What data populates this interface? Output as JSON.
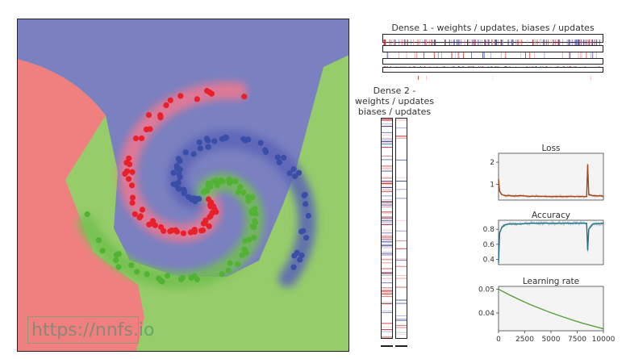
{
  "watermark": "https://nnfs.io",
  "dense1": {
    "title": "Dense 1 - weights / updates, biases / updates"
  },
  "dense2": {
    "title_line1": "Dense 2 -",
    "title_line2": "weights / updates",
    "title_line3": "biases / updates"
  },
  "colors": {
    "class0": "#e8202a",
    "class1": "#3a4ea8",
    "class2": "#52b234",
    "region0": "#f08080",
    "region1": "#7a80c0",
    "region2": "#96cc6a",
    "loss_line": "#a4461a",
    "acc_line": "#206e8a",
    "lr_line": "#5a9e3a",
    "panel_bg": "#f4f4f4"
  },
  "chart_data": [
    {
      "type": "scatter",
      "title": "",
      "description_of_series": "three interleaved spiral arms on a decision-region background",
      "series": [
        {
          "color": "red",
          "arms": 1
        },
        {
          "color": "blue",
          "arms": 1
        },
        {
          "color": "green",
          "arms": 1
        }
      ]
    },
    {
      "type": "line",
      "title": "Loss",
      "x": [
        0,
        100,
        300,
        600,
        1000,
        1500,
        2000,
        3000,
        4000,
        5000,
        6000,
        7000,
        8000,
        8400,
        8500,
        8600,
        9000,
        10000
      ],
      "values": [
        1.25,
        0.7,
        0.55,
        0.5,
        0.5,
        0.48,
        0.5,
        0.47,
        0.47,
        0.46,
        0.46,
        0.46,
        0.46,
        0.46,
        1.9,
        0.55,
        0.5,
        0.48
      ],
      "xlim": [
        0,
        10000
      ],
      "ylim": [
        0.3,
        2.4
      ],
      "yticks": [
        "1",
        "2"
      ]
    },
    {
      "type": "line",
      "title": "Accuracy",
      "x": [
        0,
        100,
        300,
        600,
        1000,
        2000,
        3000,
        4000,
        5000,
        6000,
        7000,
        8000,
        8400,
        8500,
        8600,
        9000,
        10000
      ],
      "values": [
        0.35,
        0.75,
        0.82,
        0.86,
        0.87,
        0.87,
        0.88,
        0.88,
        0.88,
        0.88,
        0.88,
        0.88,
        0.88,
        0.52,
        0.8,
        0.87,
        0.88
      ],
      "xlim": [
        0,
        10000
      ],
      "ylim": [
        0.33,
        0.92
      ],
      "yticks": [
        "0.4",
        "0.6",
        "0.8"
      ]
    },
    {
      "type": "line",
      "title": "Learning rate",
      "x": [
        0,
        1000,
        2000,
        3000,
        4000,
        5000,
        6000,
        7000,
        8000,
        9000,
        10000
      ],
      "values": [
        0.05,
        0.0477,
        0.0456,
        0.0436,
        0.0418,
        0.0401,
        0.0386,
        0.0371,
        0.0357,
        0.0345,
        0.0333
      ],
      "xlim": [
        0,
        10000
      ],
      "ylim": [
        0.0325,
        0.0512
      ],
      "yticks": [
        "0.04",
        "0.05"
      ],
      "xticks": [
        "0",
        "2500",
        "5000",
        "7500",
        "10000"
      ]
    }
  ]
}
